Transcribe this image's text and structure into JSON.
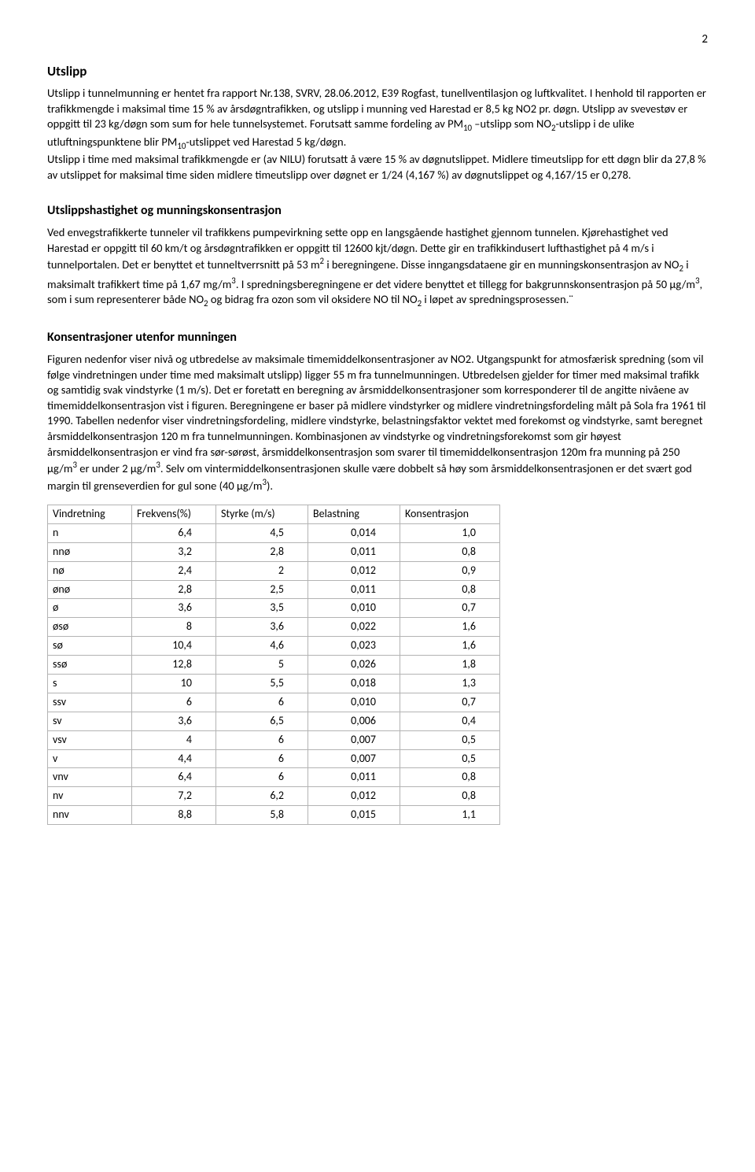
{
  "page_number": "2",
  "section_utslipp": {
    "title": "Utslipp",
    "paragraph": "Utslipp i tunnelmunning er hentet fra rapport Nr.138, SVRV, 28.06.2012, E39 Rogfast, tunellventilasjon og luftkvalitet.  I henhold til rapporten er trafikkmengde i maksimal time 15 % av årsdøgntrafikken, og utslipp i munning ved Harestad er 8,5 kg NO2 pr. døgn. Utslipp av svevestøv er oppgitt til 23 kg/døgn som sum for hele tunnelsystemet. Forutsatt samme fordeling av PM₁₀ –utslipp som NO₂-utslipp i de ulike utluftningspunktene blir PM₁₀-utslippet ved Harestad 5 kg/døgn.",
    "paragraph2": "Utslipp i time med maksimal trafikkmengde er (av NILU) forutsatt å være 15 % av døgnutslippet. Midlere timeutslipp for ett døgn blir da 27,8 % av utslippet for maksimal time siden midlere timeutslipp over døgnet er 1/24 (4,167 %) av døgnutslippet og 4,167/15 er 0,278."
  },
  "section_hastighet": {
    "title": "Utslippshastighet og munningskonsentrasjon",
    "paragraph": "Ved envegstrafikkerte tunneler vil trafikkens pumpevirkning sette opp en langsgående hastighet gjennom tunnelen. Kjørehastighet ved Harestad er oppgitt til 60 km/t og årsdøgntrafikken er oppgitt til 12600 kjt/døgn. Dette gir en trafikkindusert lufthastighet på 4 m/s i tunnelportalen. Det er benyttet et tunneltverrsnitt på 53 m² i beregningene. Disse inngangsdataene gir en munningskonsentrasjon av NO₂ i maksimalt trafikkert time på 1,67 mg/m³. I spredningsberegningene er det videre benyttet et tillegg for bakgrunnskonsentrasjon på 50 μg/m³, som i sum representerer både NO₂ og bidrag fra ozon som vil oksidere NO til NO₂ i løpet av spredningsprosessen.¨"
  },
  "section_konsentrasjon": {
    "title": "Konsentrasjoner utenfor munningen",
    "paragraph": "Figuren nedenfor viser nivå og utbredelse av maksimale timemiddelkonsentrasjoner av NO2. Utgangspunkt for atmosfærisk spredning (som vil følge vindretningen under time med maksimalt utslipp) ligger 55 m fra tunnelmunningen. Utbredelsen gjelder for timer med maksimal trafikk og samtidig svak vindstyrke (1 m/s). Det er foretatt en beregning av årsmiddelkonsentrasjoner som korresponderer til de angitte nivåene av timemiddelkonsentrasjon vist i figuren. Beregningene er baser på midlere vindstyrker og midlere vindretningsfordeling målt på Sola fra 1961 til 1990. Tabellen nedenfor viser vindretningsfordeling, midlere vindstyrke, belastningsfaktor vektet med forekomst og vindstyrke, samt beregnet årsmiddelkonsentrasjon 120 m fra tunnelmunningen. Kombinasjonen av vindstyrke og vindretningsforekomst som gir høyest årsmiddelkonsentrasjon er vind fra sør-sørøst, årsmiddelkonsentrasjon som svarer til timemiddelkonsentrasjon 120m fra munning på 250 μg/m³ er under 2 μg/m³. Selv om vintermiddelkonsentrasjonen skulle være dobbelt så høy som årsmiddelkonsentrasjonen er det svært god margin til grenseverdien for gul sone (40 μg/m³)."
  },
  "table": {
    "columns": [
      "Vindretning",
      "Frekvens(%)",
      "Styrke (m/s)",
      "Belastning",
      "Konsentrasjon"
    ],
    "rows": [
      [
        "n",
        "6,4",
        "4,5",
        "0,014",
        "1,0"
      ],
      [
        "nnø",
        "3,2",
        "2,8",
        "0,011",
        "0,8"
      ],
      [
        "nø",
        "2,4",
        "2",
        "0,012",
        "0,9"
      ],
      [
        "ønø",
        "2,8",
        "2,5",
        "0,011",
        "0,8"
      ],
      [
        "ø",
        "3,6",
        "3,5",
        "0,010",
        "0,7"
      ],
      [
        "øsø",
        "8",
        "3,6",
        "0,022",
        "1,6"
      ],
      [
        "sø",
        "10,4",
        "4,6",
        "0,023",
        "1,6"
      ],
      [
        "ssø",
        "12,8",
        "5",
        "0,026",
        "1,8"
      ],
      [
        "s",
        "10",
        "5,5",
        "0,018",
        "1,3"
      ],
      [
        "ssv",
        "6",
        "6",
        "0,010",
        "0,7"
      ],
      [
        "sv",
        "3,6",
        "6,5",
        "0,006",
        "0,4"
      ],
      [
        "vsv",
        "4",
        "6",
        "0,007",
        "0,5"
      ],
      [
        "v",
        "4,4",
        "6",
        "0,007",
        "0,5"
      ],
      [
        "vnv",
        "6,4",
        "6",
        "0,011",
        "0,8"
      ],
      [
        "nv",
        "7,2",
        "6,2",
        "0,012",
        "0,8"
      ],
      [
        "nnv",
        "8,8",
        "5,8",
        "0,015",
        "1,1"
      ]
    ],
    "col_widths": [
      "90px",
      "90px",
      "100px",
      "100px",
      "110px"
    ],
    "border_color": "#b3b3b3",
    "text_color": "#000000",
    "font_size": 14
  }
}
